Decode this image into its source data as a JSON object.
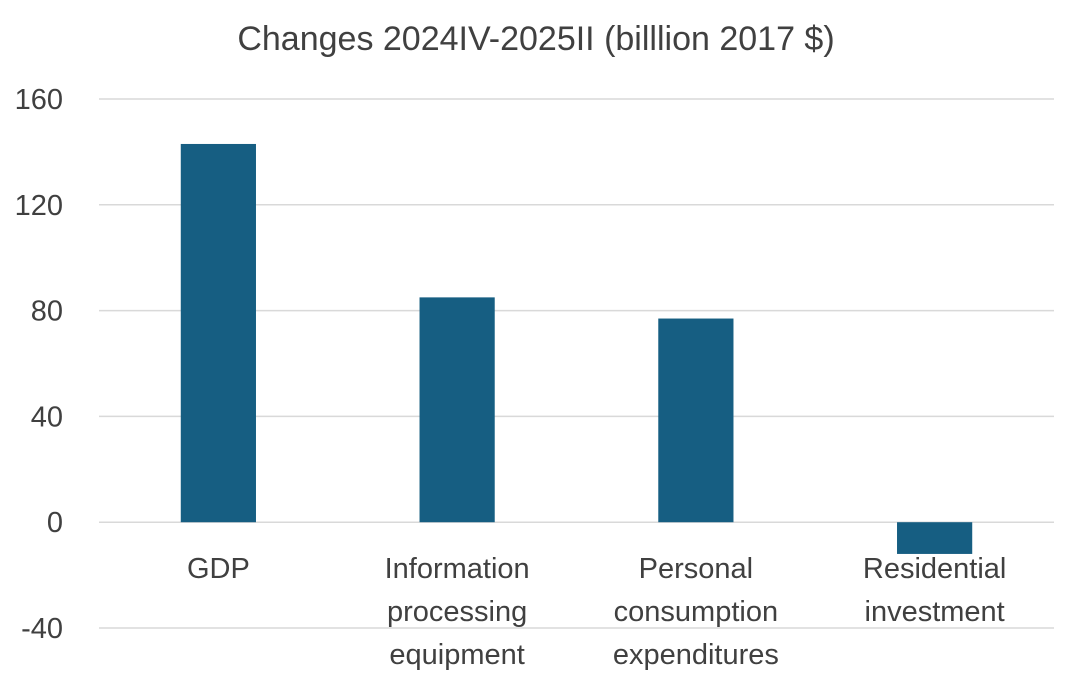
{
  "chart_data": {
    "type": "bar",
    "title": "Changes 2024IV-2025II (billlion 2017 $)",
    "xlabel": "",
    "ylabel": "",
    "categories": [
      [
        "GDP"
      ],
      [
        "Information",
        "processing",
        "equipment"
      ],
      [
        "Personal",
        "consumption",
        "expenditures"
      ],
      [
        "Residential",
        "investment"
      ]
    ],
    "values": [
      143,
      85,
      77,
      -12
    ],
    "ylim": [
      -40,
      160
    ],
    "yticks": [
      160,
      120,
      80,
      40,
      0,
      -40
    ],
    "grid": true,
    "bar_color": "#165e82",
    "grid_color": "#d9d9d9",
    "text_color": "#404040"
  }
}
